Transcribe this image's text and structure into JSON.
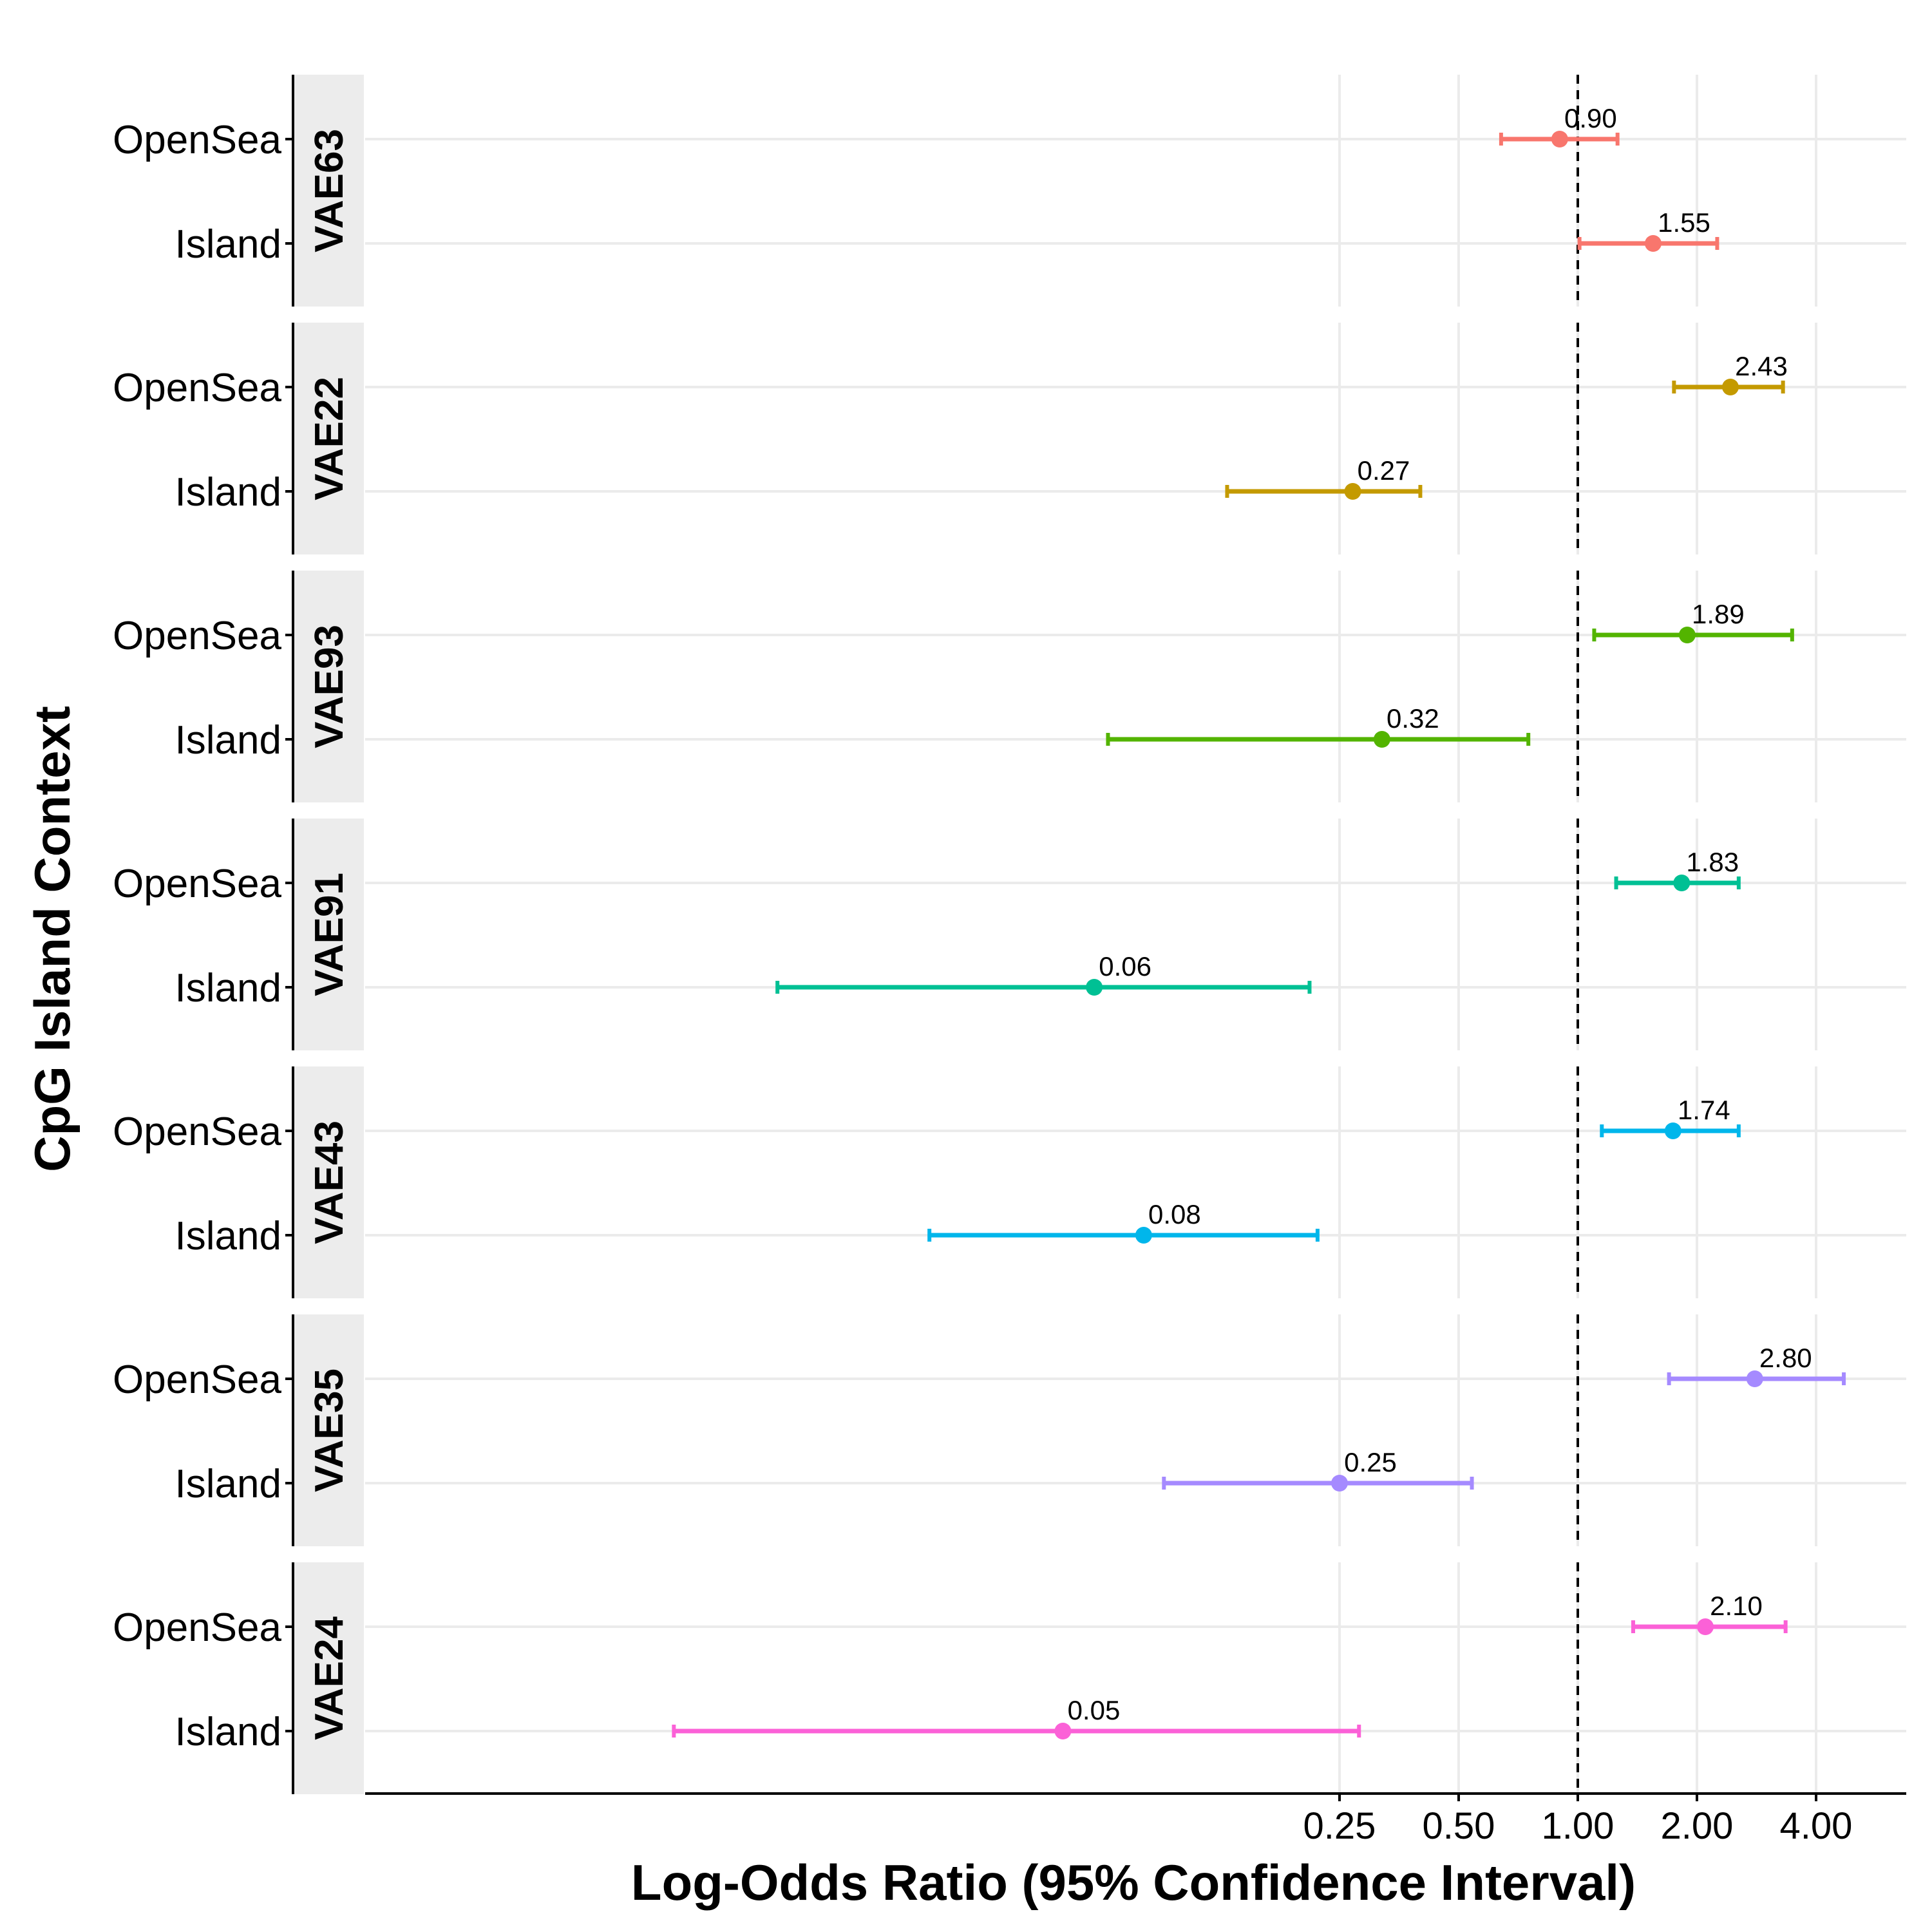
{
  "chart_data": {
    "type": "forest",
    "xlabel": "Log-Odds Ratio (95% Confidence Interval)",
    "ylabel": "CpG Island Context",
    "x_scale": "log2",
    "xlim": [
      0.0051,
      5.3
    ],
    "x_ticks": [
      0.25,
      0.5,
      1,
      2,
      4
    ],
    "x_tick_labels": [
      "0.25",
      "0.50",
      "1.00",
      "2.00",
      "4.00"
    ],
    "reference_line": 1,
    "categories": [
      "OpenSea",
      "Island"
    ],
    "grid": true,
    "panels": [
      {
        "name": "VAE63",
        "color": "#F8766D",
        "rows": [
          {
            "category": "OpenSea",
            "estimate": 0.9,
            "lower": 0.64,
            "upper": 1.26,
            "label": "0.90"
          },
          {
            "category": "Island",
            "estimate": 1.55,
            "lower": 1.01,
            "upper": 2.25,
            "label": "1.55"
          }
        ]
      },
      {
        "name": "VAE22",
        "color": "#C49A00",
        "rows": [
          {
            "category": "OpenSea",
            "estimate": 2.43,
            "lower": 1.75,
            "upper": 3.3,
            "label": "2.43"
          },
          {
            "category": "Island",
            "estimate": 0.27,
            "lower": 0.13,
            "upper": 0.4,
            "label": "0.27"
          }
        ]
      },
      {
        "name": "VAE93",
        "color": "#53B400",
        "rows": [
          {
            "category": "OpenSea",
            "estimate": 1.89,
            "lower": 1.1,
            "upper": 3.48,
            "label": "1.89"
          },
          {
            "category": "Island",
            "estimate": 0.32,
            "lower": 0.065,
            "upper": 0.75,
            "label": "0.32"
          }
        ]
      },
      {
        "name": "VAE91",
        "color": "#00C094",
        "rows": [
          {
            "category": "OpenSea",
            "estimate": 1.83,
            "lower": 1.25,
            "upper": 2.55,
            "label": "1.83"
          },
          {
            "category": "Island",
            "estimate": 0.06,
            "lower": 0.0095,
            "upper": 0.21,
            "label": "0.06"
          }
        ]
      },
      {
        "name": "VAE43",
        "color": "#00B6EB",
        "rows": [
          {
            "category": "OpenSea",
            "estimate": 1.74,
            "lower": 1.15,
            "upper": 2.55,
            "label": "1.74"
          },
          {
            "category": "Island",
            "estimate": 0.08,
            "lower": 0.023,
            "upper": 0.22,
            "label": "0.08"
          }
        ]
      },
      {
        "name": "VAE35",
        "color": "#A58AFF",
        "rows": [
          {
            "category": "OpenSea",
            "estimate": 2.8,
            "lower": 1.7,
            "upper": 4.7,
            "label": "2.80"
          },
          {
            "category": "Island",
            "estimate": 0.25,
            "lower": 0.09,
            "upper": 0.54,
            "label": "0.25"
          }
        ]
      },
      {
        "name": "VAE24",
        "color": "#FB61D7",
        "rows": [
          {
            "category": "OpenSea",
            "estimate": 2.1,
            "lower": 1.38,
            "upper": 3.35,
            "label": "2.10"
          },
          {
            "category": "Island",
            "estimate": 0.05,
            "lower": 0.0052,
            "upper": 0.28,
            "label": "0.05"
          }
        ]
      }
    ]
  }
}
